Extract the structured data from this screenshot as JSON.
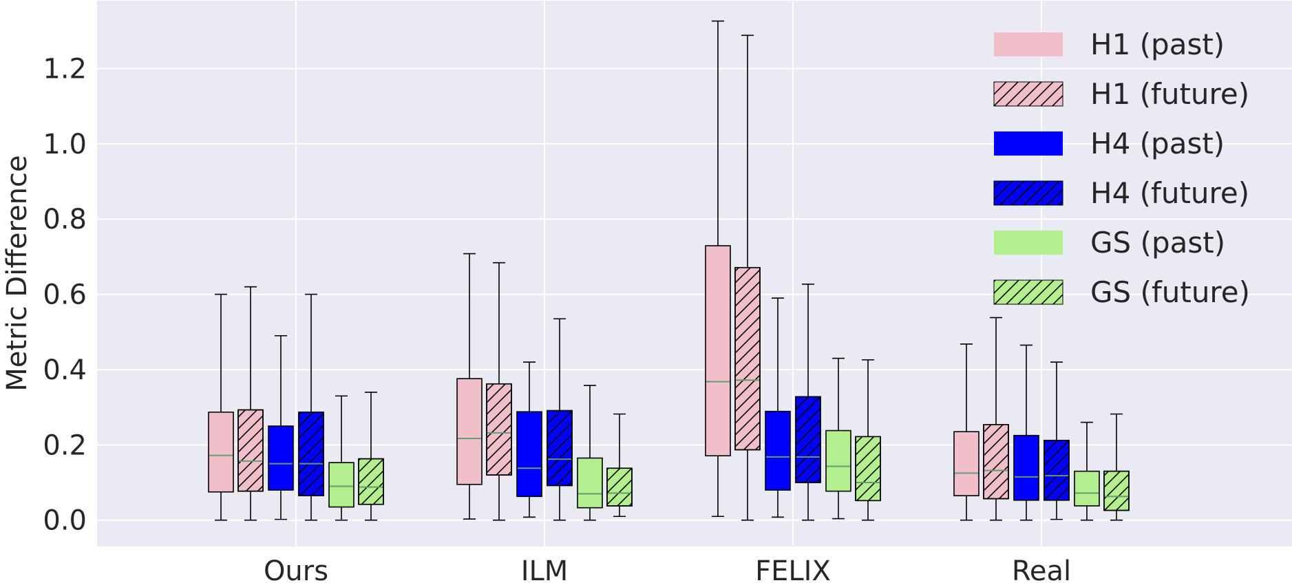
{
  "chart_data": {
    "type": "box",
    "ylabel": "Metric Difference",
    "xlabel": "",
    "ylim": [
      -0.07,
      1.38
    ],
    "yticks": [
      0.0,
      0.2,
      0.4,
      0.6,
      0.8,
      1.0,
      1.2
    ],
    "ytick_labels": [
      "0.0",
      "0.2",
      "0.4",
      "0.6",
      "0.8",
      "1.0",
      "1.2"
    ],
    "categories": [
      "Ours",
      "ILM",
      "FELIX",
      "Real"
    ],
    "grid": true,
    "legend_position": "top-right",
    "series": [
      {
        "name": "H1 (past)",
        "color": "#f0bfc9",
        "hatch": false,
        "boxes": [
          {
            "whislo": 0.0,
            "q1": 0.075,
            "med": 0.172,
            "q3": 0.287,
            "whishi": 0.6
          },
          {
            "whislo": 0.003,
            "q1": 0.095,
            "med": 0.217,
            "q3": 0.376,
            "whishi": 0.708
          },
          {
            "whislo": 0.01,
            "q1": 0.171,
            "med": 0.368,
            "q3": 0.729,
            "whishi": 1.326
          },
          {
            "whislo": 0.0,
            "q1": 0.065,
            "med": 0.125,
            "q3": 0.235,
            "whishi": 0.468
          }
        ]
      },
      {
        "name": "H1 (future)",
        "color": "#f0bfc9",
        "hatch": true,
        "boxes": [
          {
            "whislo": 0.0,
            "q1": 0.077,
            "med": 0.157,
            "q3": 0.293,
            "whishi": 0.62
          },
          {
            "whislo": 0.0,
            "q1": 0.12,
            "med": 0.232,
            "q3": 0.362,
            "whishi": 0.684
          },
          {
            "whislo": 0.0,
            "q1": 0.187,
            "med": 0.372,
            "q3": 0.671,
            "whishi": 1.288
          },
          {
            "whislo": 0.0,
            "q1": 0.057,
            "med": 0.132,
            "q3": 0.254,
            "whishi": 0.538
          }
        ]
      },
      {
        "name": "H4 (past)",
        "color": "#0000ff",
        "hatch": false,
        "boxes": [
          {
            "whislo": 0.002,
            "q1": 0.08,
            "med": 0.15,
            "q3": 0.25,
            "whishi": 0.49
          },
          {
            "whislo": 0.008,
            "q1": 0.063,
            "med": 0.138,
            "q3": 0.288,
            "whishi": 0.42
          },
          {
            "whislo": 0.008,
            "q1": 0.08,
            "med": 0.168,
            "q3": 0.289,
            "whishi": 0.59
          },
          {
            "whislo": 0.0,
            "q1": 0.053,
            "med": 0.115,
            "q3": 0.225,
            "whishi": 0.465
          }
        ]
      },
      {
        "name": "H4 (future)",
        "color": "#0000ff",
        "hatch": true,
        "boxes": [
          {
            "whislo": 0.0,
            "q1": 0.065,
            "med": 0.15,
            "q3": 0.287,
            "whishi": 0.6
          },
          {
            "whislo": 0.0,
            "q1": 0.092,
            "med": 0.162,
            "q3": 0.291,
            "whishi": 0.535
          },
          {
            "whislo": 0.0,
            "q1": 0.1,
            "med": 0.168,
            "q3": 0.328,
            "whishi": 0.627
          },
          {
            "whislo": 0.002,
            "q1": 0.053,
            "med": 0.118,
            "q3": 0.212,
            "whishi": 0.42
          }
        ]
      },
      {
        "name": "GS (past)",
        "color": "#b3ef8f",
        "hatch": false,
        "boxes": [
          {
            "whislo": 0.0,
            "q1": 0.035,
            "med": 0.09,
            "q3": 0.153,
            "whishi": 0.33
          },
          {
            "whislo": 0.0,
            "q1": 0.033,
            "med": 0.07,
            "q3": 0.165,
            "whishi": 0.358
          },
          {
            "whislo": 0.004,
            "q1": 0.077,
            "med": 0.143,
            "q3": 0.238,
            "whishi": 0.43
          },
          {
            "whislo": 0.0,
            "q1": 0.038,
            "med": 0.072,
            "q3": 0.13,
            "whishi": 0.26
          }
        ]
      },
      {
        "name": "GS (future)",
        "color": "#b3ef8f",
        "hatch": true,
        "boxes": [
          {
            "whislo": 0.0,
            "q1": 0.042,
            "med": 0.088,
            "q3": 0.163,
            "whishi": 0.34
          },
          {
            "whislo": 0.01,
            "q1": 0.038,
            "med": 0.072,
            "q3": 0.138,
            "whishi": 0.282
          },
          {
            "whislo": 0.0,
            "q1": 0.052,
            "med": 0.1,
            "q3": 0.222,
            "whishi": 0.426
          },
          {
            "whislo": 0.0,
            "q1": 0.026,
            "med": 0.063,
            "q3": 0.13,
            "whishi": 0.282
          }
        ]
      }
    ]
  },
  "colors": {
    "background": "#eaeaf2",
    "grid": "#ffffff",
    "median": "#5f9e6e",
    "outline": "#000000"
  }
}
